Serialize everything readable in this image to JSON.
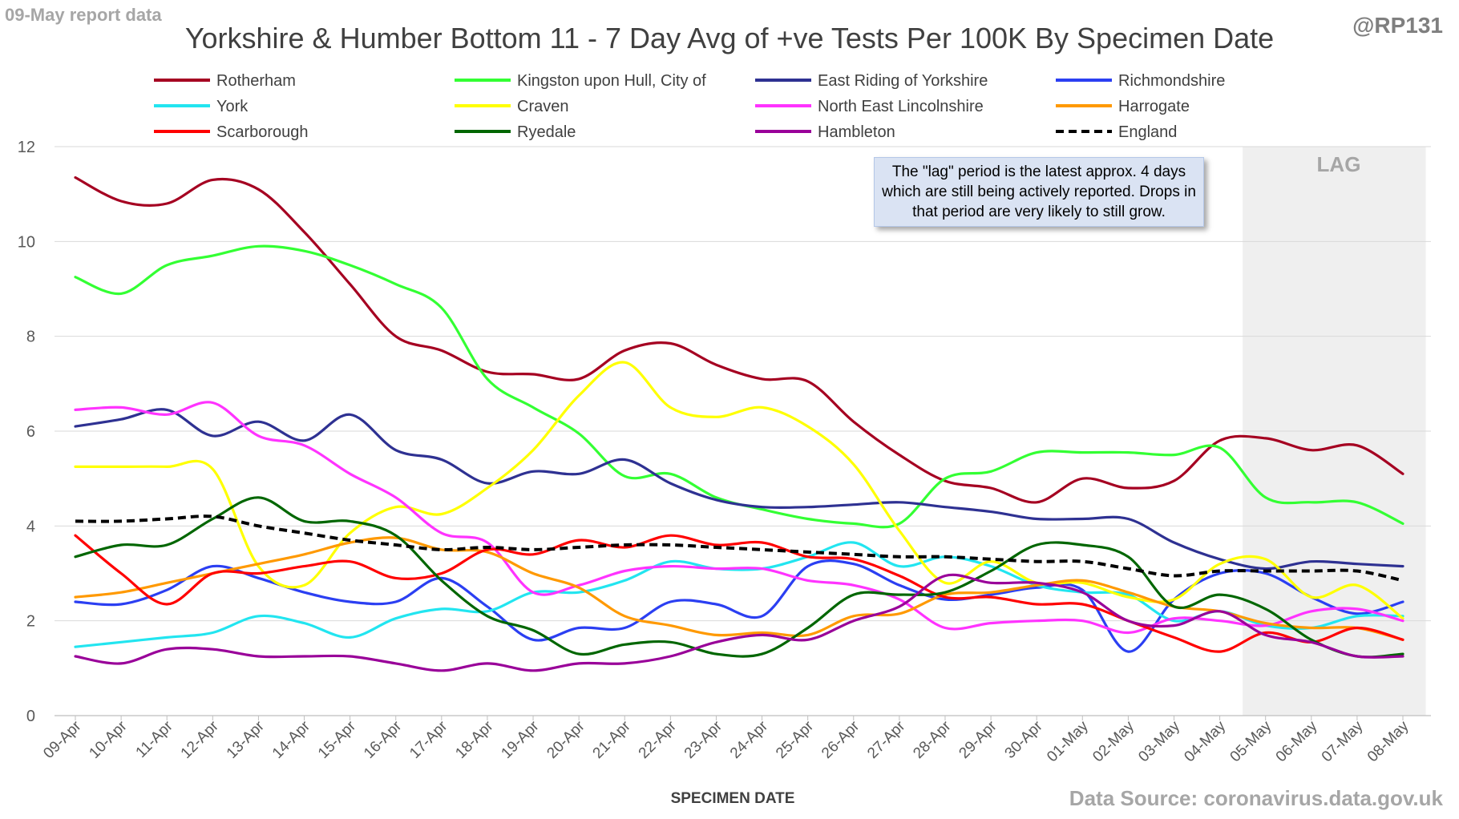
{
  "header": {
    "report_label": "09-May report data",
    "handle": "@RP131"
  },
  "footer": {
    "source": "Data Source: coronavirus.data.gov.uk"
  },
  "annotation": "The \"lag\" period is the latest approx. 4 days which are still being actively reported.  Drops in that period are very likely to still grow.",
  "chart_data": {
    "type": "line",
    "title": "Yorkshire & Humber Bottom 11 - 7 Day Avg of +ve Tests Per 100K By Specimen Date",
    "xlabel": "SPECIMEN DATE",
    "ylabel": "",
    "ylim": [
      0,
      12
    ],
    "yticks": [
      0,
      2,
      4,
      6,
      8,
      10,
      12
    ],
    "grid": true,
    "legend_position": "top",
    "shaded_region": {
      "label": "LAG",
      "from": "05-May",
      "to": "08-May"
    },
    "categories": [
      "09-Apr",
      "10-Apr",
      "11-Apr",
      "12-Apr",
      "13-Apr",
      "14-Apr",
      "15-Apr",
      "16-Apr",
      "17-Apr",
      "18-Apr",
      "19-Apr",
      "20-Apr",
      "21-Apr",
      "22-Apr",
      "23-Apr",
      "24-Apr",
      "25-Apr",
      "26-Apr",
      "27-Apr",
      "28-Apr",
      "29-Apr",
      "30-Apr",
      "01-May",
      "02-May",
      "03-May",
      "04-May",
      "05-May",
      "06-May",
      "07-May",
      "08-May"
    ],
    "series": [
      {
        "name": "Rotherham",
        "color": "#a50021",
        "dash": false,
        "values": [
          11.35,
          10.85,
          10.8,
          11.3,
          11.1,
          10.2,
          9.1,
          8.0,
          7.7,
          7.25,
          7.2,
          7.1,
          7.7,
          7.85,
          7.4,
          7.1,
          7.05,
          6.2,
          5.5,
          4.95,
          4.8,
          4.5,
          5.0,
          4.8,
          4.95,
          5.8,
          5.85,
          5.6,
          5.7,
          5.1
        ]
      },
      {
        "name": "Kingston upon Hull, City of",
        "color": "#33ff33",
        "dash": false,
        "values": [
          9.25,
          8.9,
          9.5,
          9.7,
          9.9,
          9.8,
          9.5,
          9.1,
          8.6,
          7.1,
          6.5,
          5.95,
          5.05,
          5.1,
          4.6,
          4.35,
          4.15,
          4.05,
          4.05,
          5.0,
          5.15,
          5.55,
          5.55,
          5.55,
          5.5,
          5.65,
          4.6,
          4.5,
          4.5,
          4.05
        ]
      },
      {
        "name": "East Riding of Yorkshire",
        "color": "#2e3192",
        "dash": false,
        "values": [
          6.1,
          6.25,
          6.45,
          5.9,
          6.2,
          5.8,
          6.35,
          5.6,
          5.4,
          4.9,
          5.15,
          5.1,
          5.4,
          4.9,
          4.55,
          4.4,
          4.4,
          4.45,
          4.5,
          4.4,
          4.3,
          4.15,
          4.15,
          4.15,
          3.65,
          3.3,
          3.1,
          3.25,
          3.2,
          3.15
        ]
      },
      {
        "name": "Richmondshire",
        "color": "#2b3ff2",
        "dash": false,
        "values": [
          2.4,
          2.35,
          2.65,
          3.15,
          2.9,
          2.6,
          2.4,
          2.4,
          2.9,
          2.3,
          1.6,
          1.85,
          1.85,
          2.4,
          2.35,
          2.1,
          3.15,
          3.2,
          2.75,
          2.45,
          2.55,
          2.7,
          2.65,
          1.35,
          2.45,
          3.0,
          3.0,
          2.5,
          2.15,
          2.4
        ]
      },
      {
        "name": "York",
        "color": "#22e5f0",
        "dash": false,
        "values": [
          1.45,
          1.55,
          1.65,
          1.75,
          2.1,
          1.95,
          1.65,
          2.05,
          2.25,
          2.2,
          2.6,
          2.6,
          2.85,
          3.25,
          3.1,
          3.1,
          3.35,
          3.65,
          3.15,
          3.35,
          3.15,
          2.75,
          2.6,
          2.55,
          2.0,
          2.2,
          1.9,
          1.85,
          2.1,
          2.1
        ]
      },
      {
        "name": "Craven",
        "color": "#ffff00",
        "dash": false,
        "values": [
          5.25,
          5.25,
          5.25,
          5.2,
          3.15,
          2.75,
          3.85,
          4.4,
          4.25,
          4.8,
          5.6,
          6.75,
          7.45,
          6.5,
          6.3,
          6.5,
          6.1,
          5.3,
          3.9,
          2.8,
          3.25,
          2.8,
          2.8,
          2.5,
          2.45,
          3.2,
          3.3,
          2.5,
          2.75,
          2.05
        ]
      },
      {
        "name": "North East Lincolnshire",
        "color": "#ff33ff",
        "dash": false,
        "values": [
          6.45,
          6.5,
          6.35,
          6.6,
          5.9,
          5.7,
          5.1,
          4.6,
          3.85,
          3.65,
          2.6,
          2.75,
          3.05,
          3.15,
          3.1,
          3.1,
          2.85,
          2.75,
          2.45,
          1.85,
          1.95,
          2.0,
          2.0,
          1.75,
          2.05,
          2.0,
          1.9,
          2.2,
          2.25,
          2.0
        ]
      },
      {
        "name": "Harrogate",
        "color": "#ff9900",
        "dash": false,
        "values": [
          2.5,
          2.6,
          2.8,
          3.0,
          3.2,
          3.4,
          3.65,
          3.75,
          3.5,
          3.45,
          3.0,
          2.7,
          2.1,
          1.9,
          1.7,
          1.75,
          1.7,
          2.1,
          2.15,
          2.55,
          2.6,
          2.75,
          2.85,
          2.6,
          2.3,
          2.2,
          1.95,
          1.85,
          1.85,
          1.6
        ]
      },
      {
        "name": "Scarborough",
        "color": "#ff0000",
        "dash": false,
        "values": [
          3.8,
          3.0,
          2.35,
          3.0,
          3.0,
          3.15,
          3.25,
          2.9,
          3.0,
          3.5,
          3.4,
          3.7,
          3.55,
          3.8,
          3.6,
          3.65,
          3.35,
          3.3,
          2.95,
          2.5,
          2.5,
          2.35,
          2.35,
          2.0,
          1.65,
          1.35,
          1.75,
          1.55,
          1.85,
          1.6
        ]
      },
      {
        "name": "Ryedale",
        "color": "#006600",
        "dash": false,
        "values": [
          3.35,
          3.6,
          3.6,
          4.15,
          4.6,
          4.1,
          4.1,
          3.8,
          2.85,
          2.1,
          1.8,
          1.3,
          1.5,
          1.55,
          1.3,
          1.3,
          1.85,
          2.55,
          2.55,
          2.6,
          3.05,
          3.6,
          3.6,
          3.35,
          2.3,
          2.55,
          2.25,
          1.6,
          1.25,
          1.3
        ]
      },
      {
        "name": "Hambleton",
        "color": "#990099",
        "dash": false,
        "values": [
          1.25,
          1.1,
          1.4,
          1.4,
          1.25,
          1.25,
          1.25,
          1.1,
          0.95,
          1.1,
          0.95,
          1.1,
          1.1,
          1.25,
          1.55,
          1.7,
          1.6,
          2.0,
          2.3,
          2.95,
          2.8,
          2.8,
          2.6,
          2.0,
          1.9,
          2.2,
          1.7,
          1.55,
          1.25,
          1.25
        ]
      },
      {
        "name": "England",
        "color": "#000000",
        "dash": true,
        "values": [
          4.1,
          4.1,
          4.15,
          4.2,
          4.0,
          3.85,
          3.7,
          3.6,
          3.5,
          3.55,
          3.5,
          3.55,
          3.6,
          3.6,
          3.55,
          3.5,
          3.45,
          3.4,
          3.35,
          3.35,
          3.3,
          3.25,
          3.25,
          3.1,
          2.95,
          3.05,
          3.05,
          3.05,
          3.05,
          2.85
        ]
      }
    ]
  }
}
